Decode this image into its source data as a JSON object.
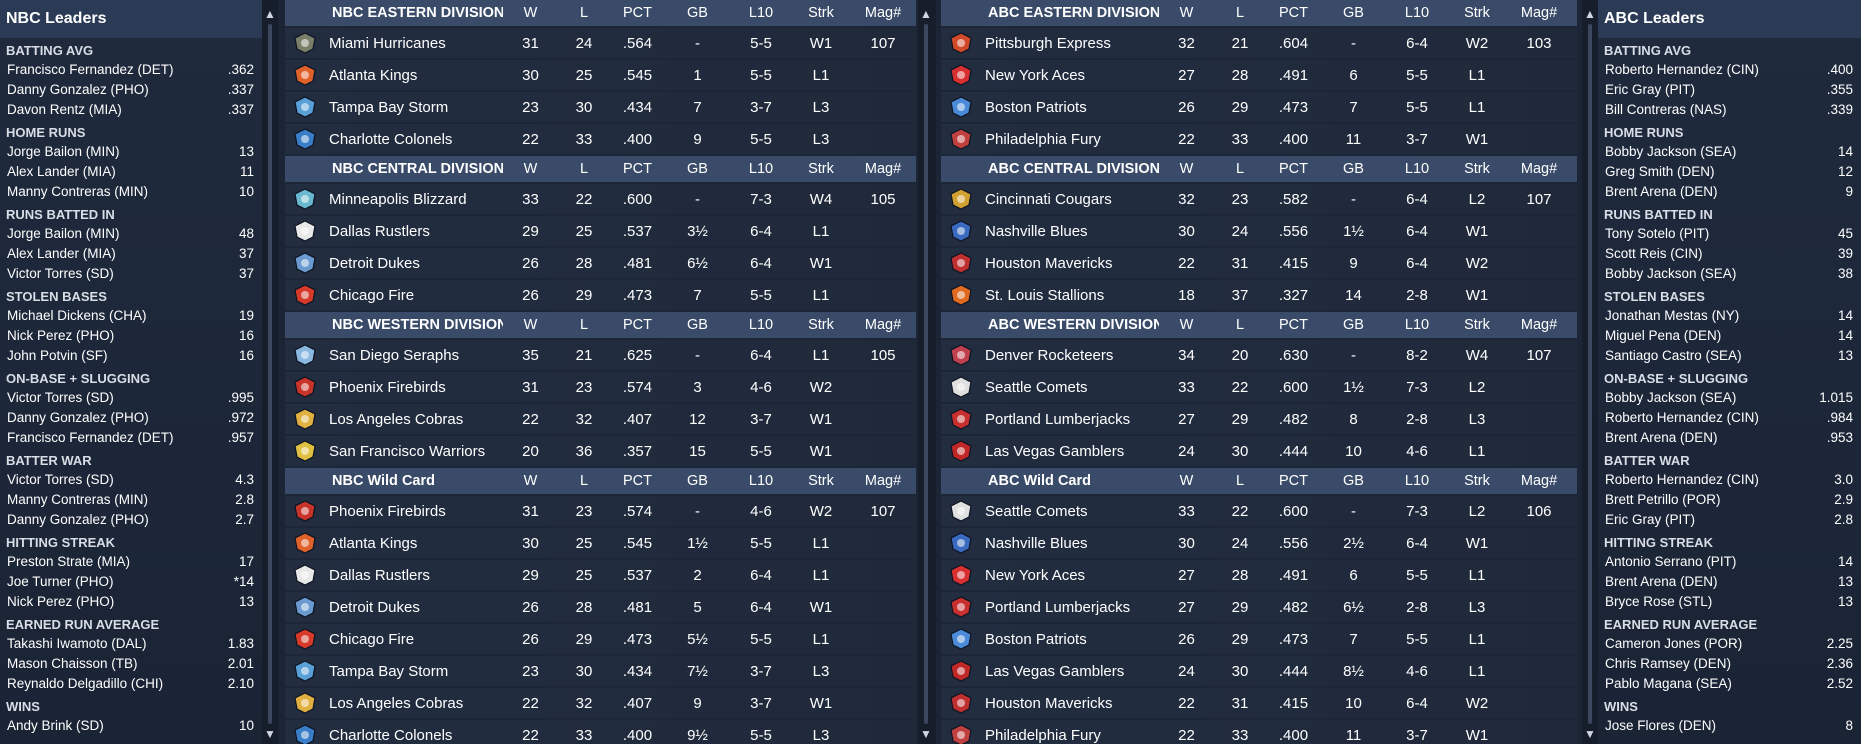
{
  "left_leaders": {
    "title": "NBC Leaders",
    "categories": [
      {
        "title": "BATTING AVG",
        "rows": [
          {
            "name": "Francisco Fernandez (DET)",
            "value": ".362"
          },
          {
            "name": "Danny Gonzalez (PHO)",
            "value": ".337"
          },
          {
            "name": "Davon Rentz (MIA)",
            "value": ".337"
          }
        ]
      },
      {
        "title": "HOME RUNS",
        "rows": [
          {
            "name": "Jorge Bailon (MIN)",
            "value": "13"
          },
          {
            "name": "Alex Lander (MIA)",
            "value": "11"
          },
          {
            "name": "Manny Contreras (MIN)",
            "value": "10"
          }
        ]
      },
      {
        "title": "RUNS BATTED IN",
        "rows": [
          {
            "name": "Jorge Bailon (MIN)",
            "value": "48"
          },
          {
            "name": "Alex Lander (MIA)",
            "value": "37"
          },
          {
            "name": "Victor Torres (SD)",
            "value": "37"
          }
        ]
      },
      {
        "title": "STOLEN BASES",
        "rows": [
          {
            "name": "Michael Dickens (CHA)",
            "value": "19"
          },
          {
            "name": "Nick Perez (PHO)",
            "value": "16"
          },
          {
            "name": "John Potvin (SF)",
            "value": "16"
          }
        ]
      },
      {
        "title": "ON-BASE + SLUGGING",
        "rows": [
          {
            "name": "Victor Torres (SD)",
            "value": ".995"
          },
          {
            "name": "Danny Gonzalez (PHO)",
            "value": ".972"
          },
          {
            "name": "Francisco Fernandez (DET)",
            "value": ".957"
          }
        ]
      },
      {
        "title": "BATTER WAR",
        "rows": [
          {
            "name": "Victor Torres (SD)",
            "value": "4.3"
          },
          {
            "name": "Manny Contreras (MIN)",
            "value": "2.8"
          },
          {
            "name": "Danny Gonzalez (PHO)",
            "value": "2.7"
          }
        ]
      },
      {
        "title": "HITTING STREAK",
        "rows": [
          {
            "name": "Preston Strate (MIA)",
            "value": "17"
          },
          {
            "name": "Joe Turner (PHO)",
            "value": "*14"
          },
          {
            "name": "Nick Perez (PHO)",
            "value": "13"
          }
        ]
      },
      {
        "title": "EARNED RUN AVERAGE",
        "rows": [
          {
            "name": "Takashi Iwamoto (DAL)",
            "value": "1.83"
          },
          {
            "name": "Mason Chaisson (TB)",
            "value": "2.01"
          },
          {
            "name": "Reynaldo Delgadillo (CHI)",
            "value": "2.10"
          }
        ]
      },
      {
        "title": "WINS",
        "rows": [
          {
            "name": "Andy Brink (SD)",
            "value": "10"
          }
        ]
      }
    ]
  },
  "right_leaders": {
    "title": "ABC Leaders",
    "categories": [
      {
        "title": "BATTING AVG",
        "rows": [
          {
            "name": "Roberto Hernandez (CIN)",
            "value": ".400"
          },
          {
            "name": "Eric Gray (PIT)",
            "value": ".355"
          },
          {
            "name": "Bill Contreras (NAS)",
            "value": ".339"
          }
        ]
      },
      {
        "title": "HOME RUNS",
        "rows": [
          {
            "name": "Bobby Jackson (SEA)",
            "value": "14"
          },
          {
            "name": "Greg Smith (DEN)",
            "value": "12"
          },
          {
            "name": "Brent Arena (DEN)",
            "value": "9"
          }
        ]
      },
      {
        "title": "RUNS BATTED IN",
        "rows": [
          {
            "name": "Tony Sotelo (PIT)",
            "value": "45"
          },
          {
            "name": "Scott Reis (CIN)",
            "value": "39"
          },
          {
            "name": "Bobby Jackson (SEA)",
            "value": "38"
          }
        ]
      },
      {
        "title": "STOLEN BASES",
        "rows": [
          {
            "name": "Jonathan Mestas (NY)",
            "value": "14"
          },
          {
            "name": "Miguel Pena (DEN)",
            "value": "14"
          },
          {
            "name": "Santiago Castro (SEA)",
            "value": "13"
          }
        ]
      },
      {
        "title": "ON-BASE + SLUGGING",
        "rows": [
          {
            "name": "Bobby Jackson (SEA)",
            "value": "1.015"
          },
          {
            "name": "Roberto Hernandez (CIN)",
            "value": ".984"
          },
          {
            "name": "Brent Arena (DEN)",
            "value": ".953"
          }
        ]
      },
      {
        "title": "BATTER WAR",
        "rows": [
          {
            "name": "Roberto Hernandez (CIN)",
            "value": "3.0"
          },
          {
            "name": "Brett Petrillo (POR)",
            "value": "2.9"
          },
          {
            "name": "Eric Gray (PIT)",
            "value": "2.8"
          }
        ]
      },
      {
        "title": "HITTING STREAK",
        "rows": [
          {
            "name": "Antonio Serrano (PIT)",
            "value": "14"
          },
          {
            "name": "Brent Arena (DEN)",
            "value": "13"
          },
          {
            "name": "Bryce Rose (STL)",
            "value": "13"
          }
        ]
      },
      {
        "title": "EARNED RUN AVERAGE",
        "rows": [
          {
            "name": "Cameron Jones (POR)",
            "value": "2.25"
          },
          {
            "name": "Chris Ramsey (DEN)",
            "value": "2.36"
          },
          {
            "name": "Pablo Magana (SEA)",
            "value": "2.52"
          }
        ]
      },
      {
        "title": "WINS",
        "rows": [
          {
            "name": "Jose Flores (DEN)",
            "value": "8"
          }
        ]
      }
    ]
  },
  "columns": {
    "w": "W",
    "l": "L",
    "pct": "PCT",
    "gb": "GB",
    "l10": "L10",
    "strk": "Strk",
    "mag": "Mag#"
  },
  "nbc_standings": [
    {
      "title": "NBC EASTERN DIVISION",
      "teams": [
        {
          "name": "Miami Hurricanes",
          "w": "31",
          "l": "24",
          "pct": ".564",
          "gb": "-",
          "l10": "5-5",
          "strk": "W1",
          "mag": "107",
          "color": "#7a7f6a",
          "icon": "hurricane-logo"
        },
        {
          "name": "Atlanta Kings",
          "w": "30",
          "l": "25",
          "pct": ".545",
          "gb": "1",
          "l10": "5-5",
          "strk": "L1",
          "mag": "",
          "color": "#e0612a",
          "icon": "kings-logo"
        },
        {
          "name": "Tampa Bay Storm",
          "w": "23",
          "l": "30",
          "pct": ".434",
          "gb": "7",
          "l10": "3-7",
          "strk": "L3",
          "mag": "",
          "color": "#5aa0d8",
          "icon": "storm-logo"
        },
        {
          "name": "Charlotte Colonels",
          "w": "22",
          "l": "33",
          "pct": ".400",
          "gb": "9",
          "l10": "5-5",
          "strk": "L3",
          "mag": "",
          "color": "#3a7ec8",
          "icon": "colonels-logo"
        }
      ]
    },
    {
      "title": "NBC CENTRAL DIVISION",
      "teams": [
        {
          "name": "Minneapolis Blizzard",
          "w": "33",
          "l": "22",
          "pct": ".600",
          "gb": "-",
          "l10": "7-3",
          "strk": "W4",
          "mag": "105",
          "color": "#6ab8d0",
          "icon": "blizzard-logo"
        },
        {
          "name": "Dallas Rustlers",
          "w": "29",
          "l": "25",
          "pct": ".537",
          "gb": "3½",
          "l10": "6-4",
          "strk": "L1",
          "mag": "",
          "color": "#e8e8e8",
          "icon": "rustlers-logo"
        },
        {
          "name": "Detroit Dukes",
          "w": "26",
          "l": "28",
          "pct": ".481",
          "gb": "6½",
          "l10": "6-4",
          "strk": "W1",
          "mag": "",
          "color": "#6a9ad0",
          "icon": "dukes-logo"
        },
        {
          "name": "Chicago Fire",
          "w": "26",
          "l": "29",
          "pct": ".473",
          "gb": "7",
          "l10": "5-5",
          "strk": "L1",
          "mag": "",
          "color": "#d83a2a",
          "icon": "fire-logo"
        }
      ]
    },
    {
      "title": "NBC WESTERN DIVISION",
      "teams": [
        {
          "name": "San Diego Seraphs",
          "w": "35",
          "l": "21",
          "pct": ".625",
          "gb": "-",
          "l10": "6-4",
          "strk": "L1",
          "mag": "105",
          "color": "#8ab8e0",
          "icon": "seraphs-logo"
        },
        {
          "name": "Phoenix Firebirds",
          "w": "31",
          "l": "23",
          "pct": ".574",
          "gb": "3",
          "l10": "4-6",
          "strk": "W2",
          "mag": "",
          "color": "#c8342a",
          "icon": "firebirds-logo"
        },
        {
          "name": "Los Angeles Cobras",
          "w": "22",
          "l": "32",
          "pct": ".407",
          "gb": "12",
          "l10": "3-7",
          "strk": "W1",
          "mag": "",
          "color": "#e0b040",
          "icon": "cobras-logo"
        },
        {
          "name": "San Francisco Warriors",
          "w": "20",
          "l": "36",
          "pct": ".357",
          "gb": "15",
          "l10": "5-5",
          "strk": "W1",
          "mag": "",
          "color": "#e0c040",
          "icon": "warriors-logo"
        }
      ]
    },
    {
      "title": "NBC  Wild Card",
      "teams": [
        {
          "name": "Phoenix Firebirds",
          "w": "31",
          "l": "23",
          "pct": ".574",
          "gb": "-",
          "l10": "4-6",
          "strk": "W2",
          "mag": "107",
          "color": "#c8342a",
          "icon": "firebirds-logo"
        },
        {
          "name": "Atlanta Kings",
          "w": "30",
          "l": "25",
          "pct": ".545",
          "gb": "1½",
          "l10": "5-5",
          "strk": "L1",
          "mag": "",
          "color": "#e0612a",
          "icon": "kings-logo"
        },
        {
          "name": "Dallas Rustlers",
          "w": "29",
          "l": "25",
          "pct": ".537",
          "gb": "2",
          "l10": "6-4",
          "strk": "L1",
          "mag": "",
          "color": "#e8e8e8",
          "icon": "rustlers-logo"
        },
        {
          "name": "Detroit Dukes",
          "w": "26",
          "l": "28",
          "pct": ".481",
          "gb": "5",
          "l10": "6-4",
          "strk": "W1",
          "mag": "",
          "color": "#6a9ad0",
          "icon": "dukes-logo"
        },
        {
          "name": "Chicago Fire",
          "w": "26",
          "l": "29",
          "pct": ".473",
          "gb": "5½",
          "l10": "5-5",
          "strk": "L1",
          "mag": "",
          "color": "#d83a2a",
          "icon": "fire-logo"
        },
        {
          "name": "Tampa Bay Storm",
          "w": "23",
          "l": "30",
          "pct": ".434",
          "gb": "7½",
          "l10": "3-7",
          "strk": "L3",
          "mag": "",
          "color": "#5aa0d8",
          "icon": "storm-logo"
        },
        {
          "name": "Los Angeles Cobras",
          "w": "22",
          "l": "32",
          "pct": ".407",
          "gb": "9",
          "l10": "3-7",
          "strk": "W1",
          "mag": "",
          "color": "#e0b040",
          "icon": "cobras-logo"
        },
        {
          "name": "Charlotte Colonels",
          "w": "22",
          "l": "33",
          "pct": ".400",
          "gb": "9½",
          "l10": "5-5",
          "strk": "L3",
          "mag": "",
          "color": "#3a7ec8",
          "icon": "colonels-logo"
        }
      ]
    }
  ],
  "abc_standings": [
    {
      "title": "ABC EASTERN DIVISION",
      "teams": [
        {
          "name": "Pittsburgh Express",
          "w": "32",
          "l": "21",
          "pct": ".604",
          "gb": "-",
          "l10": "6-4",
          "strk": "W2",
          "mag": "103",
          "color": "#d04a2a",
          "icon": "express-logo"
        },
        {
          "name": "New York Aces",
          "w": "27",
          "l": "28",
          "pct": ".491",
          "gb": "6",
          "l10": "5-5",
          "strk": "L1",
          "mag": "",
          "color": "#d83030",
          "icon": "aces-logo"
        },
        {
          "name": "Boston Patriots",
          "w": "26",
          "l": "29",
          "pct": ".473",
          "gb": "7",
          "l10": "5-5",
          "strk": "L1",
          "mag": "",
          "color": "#4a8ad8",
          "icon": "patriots-logo"
        },
        {
          "name": "Philadelphia Fury",
          "w": "22",
          "l": "33",
          "pct": ".400",
          "gb": "11",
          "l10": "3-7",
          "strk": "W1",
          "mag": "",
          "color": "#c04040",
          "icon": "fury-logo"
        }
      ]
    },
    {
      "title": "ABC CENTRAL DIVISION",
      "teams": [
        {
          "name": "Cincinnati Cougars",
          "w": "32",
          "l": "23",
          "pct": ".582",
          "gb": "-",
          "l10": "6-4",
          "strk": "L2",
          "mag": "107",
          "color": "#d0a030",
          "icon": "cougars-logo"
        },
        {
          "name": "Nashville Blues",
          "w": "30",
          "l": "24",
          "pct": ".556",
          "gb": "1½",
          "l10": "6-4",
          "strk": "W1",
          "mag": "",
          "color": "#3a6ac0",
          "icon": "blues-logo"
        },
        {
          "name": "Houston Mavericks",
          "w": "22",
          "l": "31",
          "pct": ".415",
          "gb": "9",
          "l10": "6-4",
          "strk": "W2",
          "mag": "",
          "color": "#c03030",
          "icon": "mavericks-logo"
        },
        {
          "name": "St. Louis Stallions",
          "w": "18",
          "l": "37",
          "pct": ".327",
          "gb": "14",
          "l10": "2-8",
          "strk": "W1",
          "mag": "",
          "color": "#e06a20",
          "icon": "stallions-logo"
        }
      ]
    },
    {
      "title": "ABC WESTERN DIVISION",
      "teams": [
        {
          "name": "Denver Rocketeers",
          "w": "34",
          "l": "20",
          "pct": ".630",
          "gb": "-",
          "l10": "8-2",
          "strk": "W4",
          "mag": "107",
          "color": "#c04050",
          "icon": "rocketeers-logo"
        },
        {
          "name": "Seattle Comets",
          "w": "33",
          "l": "22",
          "pct": ".600",
          "gb": "1½",
          "l10": "7-3",
          "strk": "L2",
          "mag": "",
          "color": "#e0e0e0",
          "icon": "comets-logo"
        },
        {
          "name": "Portland Lumberjacks",
          "w": "27",
          "l": "29",
          "pct": ".482",
          "gb": "8",
          "l10": "2-8",
          "strk": "L3",
          "mag": "",
          "color": "#c83030",
          "icon": "lumberjacks-logo"
        },
        {
          "name": "Las Vegas Gamblers",
          "w": "24",
          "l": "30",
          "pct": ".444",
          "gb": "10",
          "l10": "4-6",
          "strk": "L1",
          "mag": "",
          "color": "#c02828",
          "icon": "gamblers-logo"
        }
      ]
    },
    {
      "title": "ABC  Wild Card",
      "teams": [
        {
          "name": "Seattle Comets",
          "w": "33",
          "l": "22",
          "pct": ".600",
          "gb": "-",
          "l10": "7-3",
          "strk": "L2",
          "mag": "106",
          "color": "#e0e0e0",
          "icon": "comets-logo"
        },
        {
          "name": "Nashville Blues",
          "w": "30",
          "l": "24",
          "pct": ".556",
          "gb": "2½",
          "l10": "6-4",
          "strk": "W1",
          "mag": "",
          "color": "#3a6ac0",
          "icon": "blues-logo"
        },
        {
          "name": "New York Aces",
          "w": "27",
          "l": "28",
          "pct": ".491",
          "gb": "6",
          "l10": "5-5",
          "strk": "L1",
          "mag": "",
          "color": "#d83030",
          "icon": "aces-logo"
        },
        {
          "name": "Portland Lumberjacks",
          "w": "27",
          "l": "29",
          "pct": ".482",
          "gb": "6½",
          "l10": "2-8",
          "strk": "L3",
          "mag": "",
          "color": "#c83030",
          "icon": "lumberjacks-logo"
        },
        {
          "name": "Boston Patriots",
          "w": "26",
          "l": "29",
          "pct": ".473",
          "gb": "7",
          "l10": "5-5",
          "strk": "L1",
          "mag": "",
          "color": "#4a8ad8",
          "icon": "patriots-logo"
        },
        {
          "name": "Las Vegas Gamblers",
          "w": "24",
          "l": "30",
          "pct": ".444",
          "gb": "8½",
          "l10": "4-6",
          "strk": "L1",
          "mag": "",
          "color": "#c02828",
          "icon": "gamblers-logo"
        },
        {
          "name": "Houston Mavericks",
          "w": "22",
          "l": "31",
          "pct": ".415",
          "gb": "10",
          "l10": "6-4",
          "strk": "W2",
          "mag": "",
          "color": "#c03030",
          "icon": "mavericks-logo"
        },
        {
          "name": "Philadelphia Fury",
          "w": "22",
          "l": "33",
          "pct": ".400",
          "gb": "11",
          "l10": "3-7",
          "strk": "W1",
          "mag": "",
          "color": "#c04040",
          "icon": "fury-logo"
        }
      ]
    }
  ]
}
